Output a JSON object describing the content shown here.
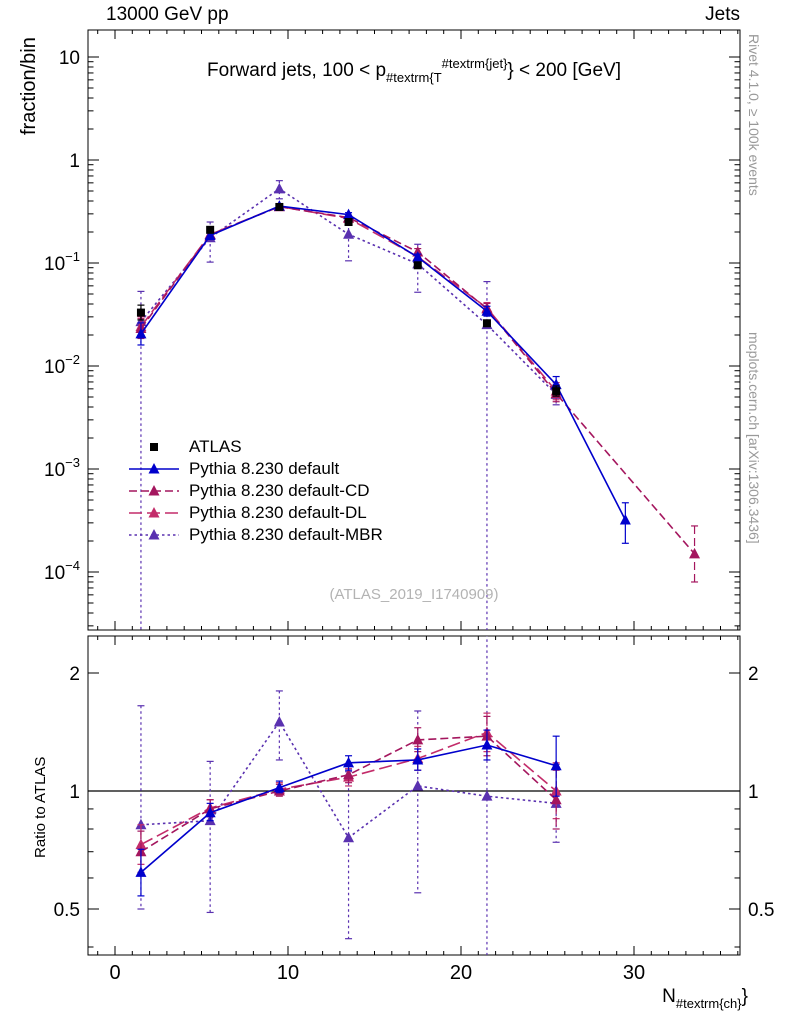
{
  "header": {
    "left": "13000 GeV pp",
    "right": "Jets"
  },
  "side_notes": {
    "top_right": "Rivet 4.1.0, ≥ 100k events",
    "bottom_right": "mcplots.cern.ch [arXiv:1306.3436]"
  },
  "watermark": "(ATLAS_2019_I1740909)",
  "chart_data": {
    "type": "scatter-line",
    "panels": "main spectrum (log y) + ratio panel (log y)",
    "title": "Forward jets, 100 < p_{#textrm{T}^{#textrm{jet}}} < 200 [GeV]",
    "title_parts": {
      "pre": "Forward jets, 100 < p",
      "sub": "#textrm{T",
      "sup": "#textrm{jet}",
      "post": "} < 200 [GeV]"
    },
    "xlabel": "N_{#textrm{ch}}",
    "xlabel_parts": {
      "pre": "N",
      "sub": "#textrm{ch}",
      "post": "}"
    },
    "ylabel_main": "fraction/bin",
    "ylabel_ratio": "Ratio to ATLAS",
    "axes": {
      "x": {
        "range": [
          -1.56,
          36.12
        ],
        "minor_step": 1,
        "ticks": [
          {
            "v": 0,
            "label": "0"
          },
          {
            "v": 10,
            "label": "10"
          },
          {
            "v": 20,
            "label": "20"
          },
          {
            "v": 30,
            "label": "30"
          }
        ]
      },
      "main_y": {
        "scale": "log",
        "range": [
          2.8e-05,
          18
        ],
        "ticks": [
          {
            "v": 10,
            "m": "10"
          },
          {
            "v": 1,
            "m": "1"
          },
          {
            "v": 0.1,
            "m": "10",
            "e": "−1"
          },
          {
            "v": 0.01,
            "m": "10",
            "e": "−2"
          },
          {
            "v": 0.001,
            "m": "10",
            "e": "−3"
          },
          {
            "v": 0.0001,
            "m": "10",
            "e": "−4"
          }
        ]
      },
      "ratio_y": {
        "scale": "log",
        "range": [
          0.38,
          2.48
        ],
        "reference": 1,
        "ticks": [
          {
            "v": 2,
            "m": "2"
          },
          {
            "v": 1,
            "m": "1"
          },
          {
            "v": 0.5,
            "m": "0.5"
          }
        ],
        "minor": [
          0.4,
          0.6,
          0.7,
          0.8,
          0.9
        ]
      }
    },
    "series": [
      {
        "key": "atlas",
        "label": "ATLAS",
        "color": "#000000",
        "marker": "square",
        "line": "none",
        "points": [
          {
            "x": 1.5,
            "y": 0.033,
            "lo": 0.028,
            "hi": 0.039
          },
          {
            "x": 5.5,
            "y": 0.21,
            "lo": 0.2,
            "hi": 0.222
          },
          {
            "x": 9.5,
            "y": 0.35,
            "lo": 0.338,
            "hi": 0.363
          },
          {
            "x": 13.5,
            "y": 0.25,
            "lo": 0.241,
            "hi": 0.26
          },
          {
            "x": 17.5,
            "y": 0.095,
            "lo": 0.09,
            "hi": 0.1
          },
          {
            "x": 21.5,
            "y": 0.026,
            "lo": 0.0245,
            "hi": 0.0276
          },
          {
            "x": 25.5,
            "y": 0.0057,
            "lo": 0.0051,
            "hi": 0.0064
          }
        ],
        "ratio": []
      },
      {
        "key": "pythia-default",
        "label": "Pythia 8.230 default",
        "color": "#0000cc",
        "marker": "triangle",
        "line": "solid",
        "points": [
          {
            "x": 1.5,
            "y": 0.0205,
            "lo": 0.016,
            "hi": 0.0262
          },
          {
            "x": 5.5,
            "y": 0.185,
            "lo": 0.176,
            "hi": 0.195
          },
          {
            "x": 9.5,
            "y": 0.357,
            "lo": 0.346,
            "hi": 0.369
          },
          {
            "x": 13.5,
            "y": 0.295,
            "lo": 0.283,
            "hi": 0.308
          },
          {
            "x": 17.5,
            "y": 0.114,
            "lo": 0.107,
            "hi": 0.122
          },
          {
            "x": 21.5,
            "y": 0.034,
            "lo": 0.0305,
            "hi": 0.038
          },
          {
            "x": 25.5,
            "y": 0.0066,
            "lo": 0.0055,
            "hi": 0.0079
          },
          {
            "x": 29.5,
            "y": 0.00032,
            "lo": 0.00019,
            "hi": 0.00047
          }
        ],
        "ratio": [
          {
            "x": 1.5,
            "y": 0.62,
            "lo": 0.54,
            "hi": 0.71
          },
          {
            "x": 5.5,
            "y": 0.88,
            "lo": 0.84,
            "hi": 0.93
          },
          {
            "x": 9.5,
            "y": 1.02,
            "lo": 0.99,
            "hi": 1.06
          },
          {
            "x": 13.5,
            "y": 1.18,
            "lo": 1.13,
            "hi": 1.23
          },
          {
            "x": 17.5,
            "y": 1.2,
            "lo": 1.13,
            "hi": 1.28
          },
          {
            "x": 21.5,
            "y": 1.31,
            "lo": 1.2,
            "hi": 1.43
          },
          {
            "x": 25.5,
            "y": 1.16,
            "lo": 0.97,
            "hi": 1.38
          }
        ]
      },
      {
        "key": "pythia-default-cd",
        "label": "Pythia 8.230 default-CD",
        "color": "#a4165e",
        "marker": "triangle",
        "line": "dashed",
        "points": [
          {
            "x": 1.5,
            "y": 0.0231,
            "lo": 0.0185,
            "hi": 0.0288
          },
          {
            "x": 5.5,
            "y": 0.189,
            "lo": 0.18,
            "hi": 0.199
          },
          {
            "x": 9.5,
            "y": 0.352,
            "lo": 0.341,
            "hi": 0.364
          },
          {
            "x": 13.5,
            "y": 0.276,
            "lo": 0.264,
            "hi": 0.289
          },
          {
            "x": 17.5,
            "y": 0.128,
            "lo": 0.119,
            "hi": 0.138
          },
          {
            "x": 21.5,
            "y": 0.0359,
            "lo": 0.0318,
            "hi": 0.0405
          },
          {
            "x": 25.5,
            "y": 0.0054,
            "lo": 0.0045,
            "hi": 0.0065
          },
          {
            "x": 33.5,
            "y": 0.00015,
            "lo": 8e-05,
            "hi": 0.00028
          }
        ],
        "ratio": [
          {
            "x": 1.5,
            "y": 0.7,
            "lo": 0.62,
            "hi": 0.79
          },
          {
            "x": 5.5,
            "y": 0.9,
            "lo": 0.86,
            "hi": 0.95
          },
          {
            "x": 9.5,
            "y": 1.0,
            "lo": 0.97,
            "hi": 1.04
          },
          {
            "x": 13.5,
            "y": 1.1,
            "lo": 1.05,
            "hi": 1.16
          },
          {
            "x": 17.5,
            "y": 1.35,
            "lo": 1.26,
            "hi": 1.45
          },
          {
            "x": 21.5,
            "y": 1.38,
            "lo": 1.23,
            "hi": 1.55
          },
          {
            "x": 25.5,
            "y": 0.95,
            "lo": 0.8,
            "hi": 1.13
          }
        ]
      },
      {
        "key": "pythia-default-dl",
        "label": "Pythia 8.230 default-DL",
        "color": "#c32c6a",
        "marker": "triangle",
        "line": "dashed2",
        "points": [
          {
            "x": 1.5,
            "y": 0.0241,
            "lo": 0.0193,
            "hi": 0.03
          },
          {
            "x": 5.5,
            "y": 0.19,
            "lo": 0.181,
            "hi": 0.2
          },
          {
            "x": 9.5,
            "y": 0.354,
            "lo": 0.343,
            "hi": 0.366
          },
          {
            "x": 13.5,
            "y": 0.271,
            "lo": 0.259,
            "hi": 0.284
          },
          {
            "x": 17.5,
            "y": 0.115,
            "lo": 0.107,
            "hi": 0.124
          },
          {
            "x": 21.5,
            "y": 0.0366,
            "lo": 0.0324,
            "hi": 0.0413
          },
          {
            "x": 25.5,
            "y": 0.0057,
            "lo": 0.0047,
            "hi": 0.0069
          }
        ],
        "ratio": [
          {
            "x": 1.5,
            "y": 0.73,
            "lo": 0.65,
            "hi": 0.82
          },
          {
            "x": 5.5,
            "y": 0.905,
            "lo": 0.86,
            "hi": 0.95
          },
          {
            "x": 9.5,
            "y": 1.01,
            "lo": 0.98,
            "hi": 1.05
          },
          {
            "x": 13.5,
            "y": 1.085,
            "lo": 1.03,
            "hi": 1.14
          },
          {
            "x": 17.5,
            "y": 1.21,
            "lo": 1.13,
            "hi": 1.3
          },
          {
            "x": 21.5,
            "y": 1.41,
            "lo": 1.26,
            "hi": 1.58
          },
          {
            "x": 25.5,
            "y": 1.0,
            "lo": 0.85,
            "hi": 1.18
          }
        ]
      },
      {
        "key": "pythia-default-mbr",
        "label": "Pythia 8.230 default-MBR",
        "color": "#5a31b0",
        "marker": "triangle",
        "line": "dotted",
        "points": [
          {
            "x": 1.5,
            "y": 0.027,
            "lo": 2e-05,
            "hi": 0.053
          },
          {
            "x": 5.5,
            "y": 0.176,
            "lo": 0.102,
            "hi": 0.25
          },
          {
            "x": 9.5,
            "y": 0.525,
            "lo": 0.42,
            "hi": 0.63
          },
          {
            "x": 13.5,
            "y": 0.19,
            "lo": 0.105,
            "hi": 0.28
          },
          {
            "x": 17.5,
            "y": 0.098,
            "lo": 0.052,
            "hi": 0.152
          },
          {
            "x": 21.5,
            "y": 0.0252,
            "lo": 2e-05,
            "hi": 0.066
          },
          {
            "x": 25.5,
            "y": 0.0053,
            "lo": 0.0042,
            "hi": 0.0066
          }
        ],
        "ratio": [
          {
            "x": 1.5,
            "y": 0.82,
            "lo": 0.5,
            "hi": 1.65
          },
          {
            "x": 5.5,
            "y": 0.84,
            "lo": 0.49,
            "hi": 1.19
          },
          {
            "x": 9.5,
            "y": 1.5,
            "lo": 1.2,
            "hi": 1.8
          },
          {
            "x": 13.5,
            "y": 0.76,
            "lo": 0.42,
            "hi": 1.12
          },
          {
            "x": 17.5,
            "y": 1.03,
            "lo": 0.55,
            "hi": 1.6
          },
          {
            "x": 21.5,
            "y": 0.97,
            "lo": 0.3,
            "hi": 2.6
          },
          {
            "x": 25.5,
            "y": 0.93,
            "lo": 0.74,
            "hi": 1.17
          }
        ]
      }
    ]
  }
}
